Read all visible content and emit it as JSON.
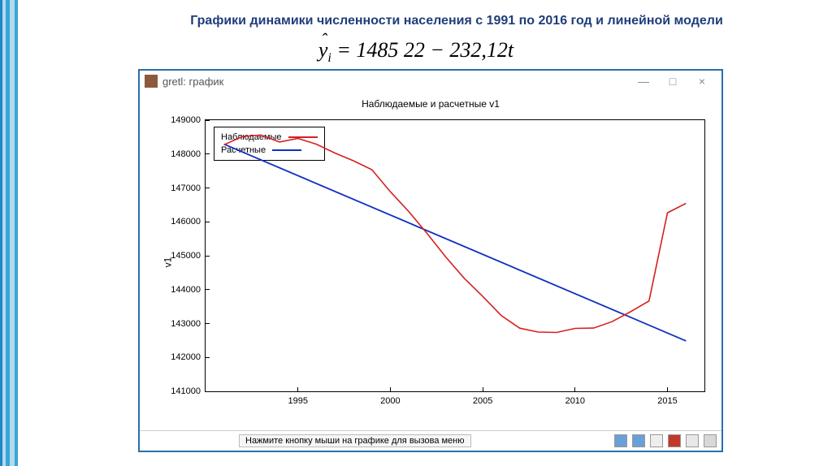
{
  "page": {
    "title": "Графики динамики численности населения с 1991 по 2016 год и линейной модели",
    "equation_lhs_var": "y",
    "equation_lhs_sub": "i",
    "equation_rhs": " = 1485 22 − 232,12",
    "equation_rhs_t": "t"
  },
  "window": {
    "app_title": "gretl: график",
    "minimize": "—",
    "maximize": "□",
    "close": "×"
  },
  "chart": {
    "type": "line",
    "title": "Наблюдаемые и расчетные v1",
    "ylabel": "v1",
    "x_range": [
      1990,
      2017
    ],
    "y_range": [
      141000,
      149000
    ],
    "xticks": [
      1995,
      2000,
      2005,
      2010,
      2015
    ],
    "yticks": [
      141000,
      142000,
      143000,
      144000,
      145000,
      146000,
      147000,
      148000,
      149000
    ],
    "legend": {
      "observed": "Наблюдаемые",
      "fitted": "Расчетные"
    },
    "series": {
      "observed": {
        "color": "#d62020",
        "width": 1.6,
        "points": [
          [
            1991,
            148274
          ],
          [
            1992,
            148515
          ],
          [
            1993,
            148562
          ],
          [
            1994,
            148356
          ],
          [
            1995,
            148460
          ],
          [
            1996,
            148292
          ],
          [
            1997,
            148029
          ],
          [
            1998,
            147802
          ],
          [
            1999,
            147539
          ],
          [
            2000,
            146890
          ],
          [
            2001,
            146304
          ],
          [
            2002,
            145649
          ],
          [
            2003,
            144964
          ],
          [
            2004,
            144334
          ],
          [
            2005,
            143801
          ],
          [
            2006,
            143236
          ],
          [
            2007,
            142863
          ],
          [
            2008,
            142748
          ],
          [
            2009,
            142737
          ],
          [
            2010,
            142857
          ],
          [
            2011,
            142865
          ],
          [
            2012,
            143056
          ],
          [
            2013,
            143347
          ],
          [
            2014,
            143667
          ],
          [
            2015,
            146267
          ],
          [
            2016,
            146545
          ]
        ]
      },
      "fitted": {
        "color": "#1030c0",
        "width": 1.8,
        "points": [
          [
            1991,
            148290
          ],
          [
            2016,
            142487
          ]
        ]
      }
    },
    "background_color": "#ffffff",
    "axis_color": "#000000",
    "tick_fontsize": 11,
    "title_fontsize": 12
  },
  "statusbar": {
    "hint": "Нажмите кнопку мыши на графике для вызова меню",
    "icons": [
      "export-icon",
      "zoom-icon",
      "copy-icon",
      "pdf-icon",
      "doc-icon",
      "print-icon"
    ]
  }
}
